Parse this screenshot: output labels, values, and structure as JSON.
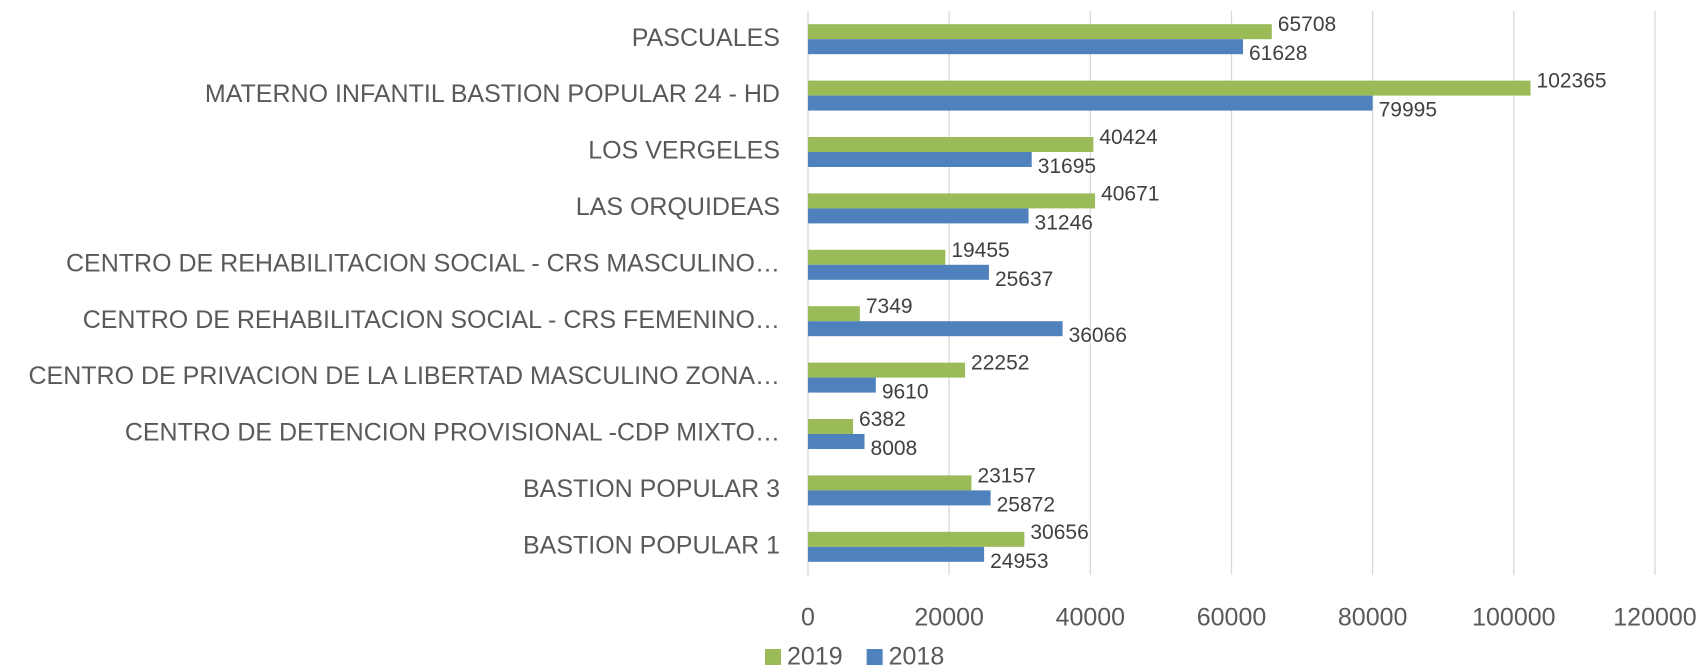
{
  "chart_data": {
    "type": "bar",
    "orientation": "horizontal",
    "categories": [
      "PASCUALES",
      "MATERNO INFANTIL BASTION POPULAR 24 - HD",
      "LOS VERGELES",
      "LAS ORQUIDEAS",
      "CENTRO DE REHABILITACION SOCIAL - CRS MASCULINO…",
      "CENTRO DE REHABILITACION SOCIAL - CRS FEMENINO…",
      "CENTRO DE PRIVACION DE LA LIBERTAD MASCULINO ZONA…",
      "CENTRO DE DETENCION PROVISIONAL -CDP MIXTO…",
      "BASTION POPULAR 3",
      "BASTION POPULAR 1"
    ],
    "series": [
      {
        "name": "2019",
        "color": "#9bbb59",
        "values": [
          65708,
          102365,
          40424,
          40671,
          19455,
          7349,
          22252,
          6382,
          23157,
          30656
        ]
      },
      {
        "name": "2018",
        "color": "#4f81bd",
        "values": [
          61628,
          79995,
          31695,
          31246,
          25637,
          36066,
          9610,
          8008,
          25872,
          24953
        ]
      }
    ],
    "xlim": [
      0,
      120000
    ],
    "xticks": [
      0,
      20000,
      40000,
      60000,
      80000,
      100000,
      120000
    ],
    "grid": true,
    "legend": "bottom"
  }
}
